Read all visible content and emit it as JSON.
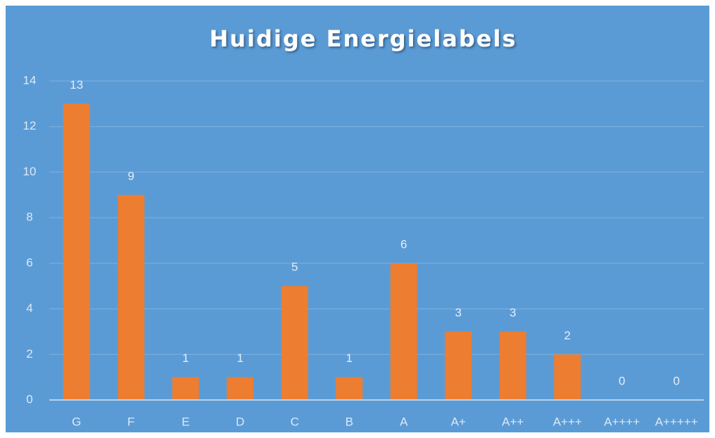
{
  "chart_data": {
    "type": "bar",
    "title": "Huidige Energielabels",
    "categories": [
      "G",
      "F",
      "E",
      "D",
      "C",
      "B",
      "A",
      "A+",
      "A++",
      "A+++",
      "A++++",
      "A+++++"
    ],
    "values": [
      13,
      9,
      1,
      1,
      5,
      1,
      6,
      3,
      3,
      2,
      0,
      0
    ],
    "color": "#ed7d31",
    "ylim": [
      0,
      14
    ],
    "yticks": [
      0,
      2,
      4,
      6,
      8,
      10,
      12,
      14
    ],
    "grid": true,
    "data_labels": true
  }
}
